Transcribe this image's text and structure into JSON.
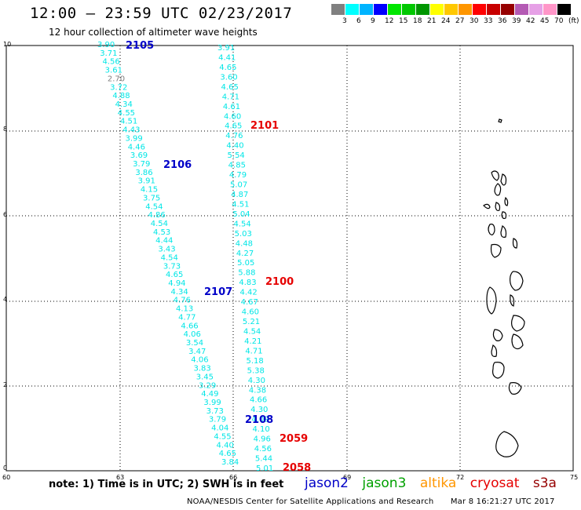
{
  "header": {
    "title": "12:00 – 23:59 UTC 02/23/2017",
    "subtitle": "12 hour collection of altimeter wave heights"
  },
  "legend": {
    "colors": [
      "#808080",
      "#00ffff",
      "#00b4ff",
      "#0000ff",
      "#00e600",
      "#00c800",
      "#009600",
      "#ffff00",
      "#ffc800",
      "#ff9600",
      "#ff0000",
      "#c80000",
      "#960000",
      "#b45ab4",
      "#e6a0e6",
      "#ff96c8",
      "#000000"
    ],
    "labels": [
      "3",
      "6",
      "9",
      "12",
      "15",
      "18",
      "21",
      "24",
      "27",
      "30",
      "33",
      "36",
      "39",
      "42",
      "45",
      "70",
      "(ft)"
    ]
  },
  "axes": {
    "lat_ticks": [
      "10",
      "8",
      "6",
      "4",
      "2",
      "0"
    ],
    "lon_ticks": [
      "60",
      "63",
      "66",
      "69",
      "72",
      "75"
    ]
  },
  "tracks": [
    {
      "values": [
        "3.90",
        "3.71",
        "4.56",
        "3.61",
        "2.70",
        "3.72",
        "4.88",
        "4.34",
        "4.55",
        "4.51",
        "4.43",
        "3.99",
        "4.46",
        "3.69",
        "3.79",
        "3.86",
        "3.91",
        "4.15",
        "3.75",
        "4.54",
        "4.86",
        "4.54",
        "4.53",
        "4.44",
        "3.43",
        "4.54",
        "3.73",
        "4.65",
        "4.94",
        "4.34",
        "4.76",
        "4.13",
        "4.77",
        "4.66",
        "4.06",
        "3.54",
        "3.47",
        "4.06",
        "3.83",
        "3.45",
        "3.29",
        "4.49",
        "3.99",
        "3.73",
        "3.79",
        "4.04",
        "4.55",
        "4.40",
        "4.65",
        "3.84"
      ]
    },
    {
      "values": [
        "3.91",
        "4.41",
        "4.65",
        "3.60",
        "4.65",
        "4.71",
        "4.61",
        "4.60",
        "4.65",
        "4.76",
        "4.40",
        "5.54",
        "4.85",
        "4.79",
        "5.07",
        "4.87",
        "4.51",
        "5.04",
        "4.54",
        "5.03",
        "4.48",
        "4.27",
        "5.05",
        "5.88",
        "4.83",
        "4.42",
        "4.67",
        "4.60",
        "5.21",
        "4.54",
        "4.21",
        "4.71",
        "5.18",
        "5.38",
        "4.30",
        "4.38",
        "4.66",
        "4.30",
        "4.09",
        "4.10",
        "4.96",
        "4.56",
        "5.44",
        "5.01"
      ]
    }
  ],
  "pass_labels": [
    {
      "text": "2105",
      "color": "#0000c8"
    },
    {
      "text": "2106",
      "color": "#0000c8"
    },
    {
      "text": "2107",
      "color": "#0000c8"
    },
    {
      "text": "2108",
      "color": "#0000c8"
    },
    {
      "text": "2101",
      "color": "#e60000"
    },
    {
      "text": "2100",
      "color": "#e60000"
    },
    {
      "text": "2059",
      "color": "#e60000"
    },
    {
      "text": "2058",
      "color": "#e60000"
    }
  ],
  "note": "note:  1) Time is in UTC; 2) SWH is in feet",
  "satellites": [
    {
      "name": "jason2",
      "color": "#0000c8"
    },
    {
      "name": "jason3",
      "color": "#00a000"
    },
    {
      "name": "altika",
      "color": "#ff9600"
    },
    {
      "name": "cryosat",
      "color": "#e60000"
    },
    {
      "name": "s3a",
      "color": "#960000"
    }
  ],
  "footer": {
    "credit": "NOAA/NESDIS Center for Satellite Applications and Research",
    "timestamp": "Mar  8 16:21:27 UTC 2017"
  }
}
